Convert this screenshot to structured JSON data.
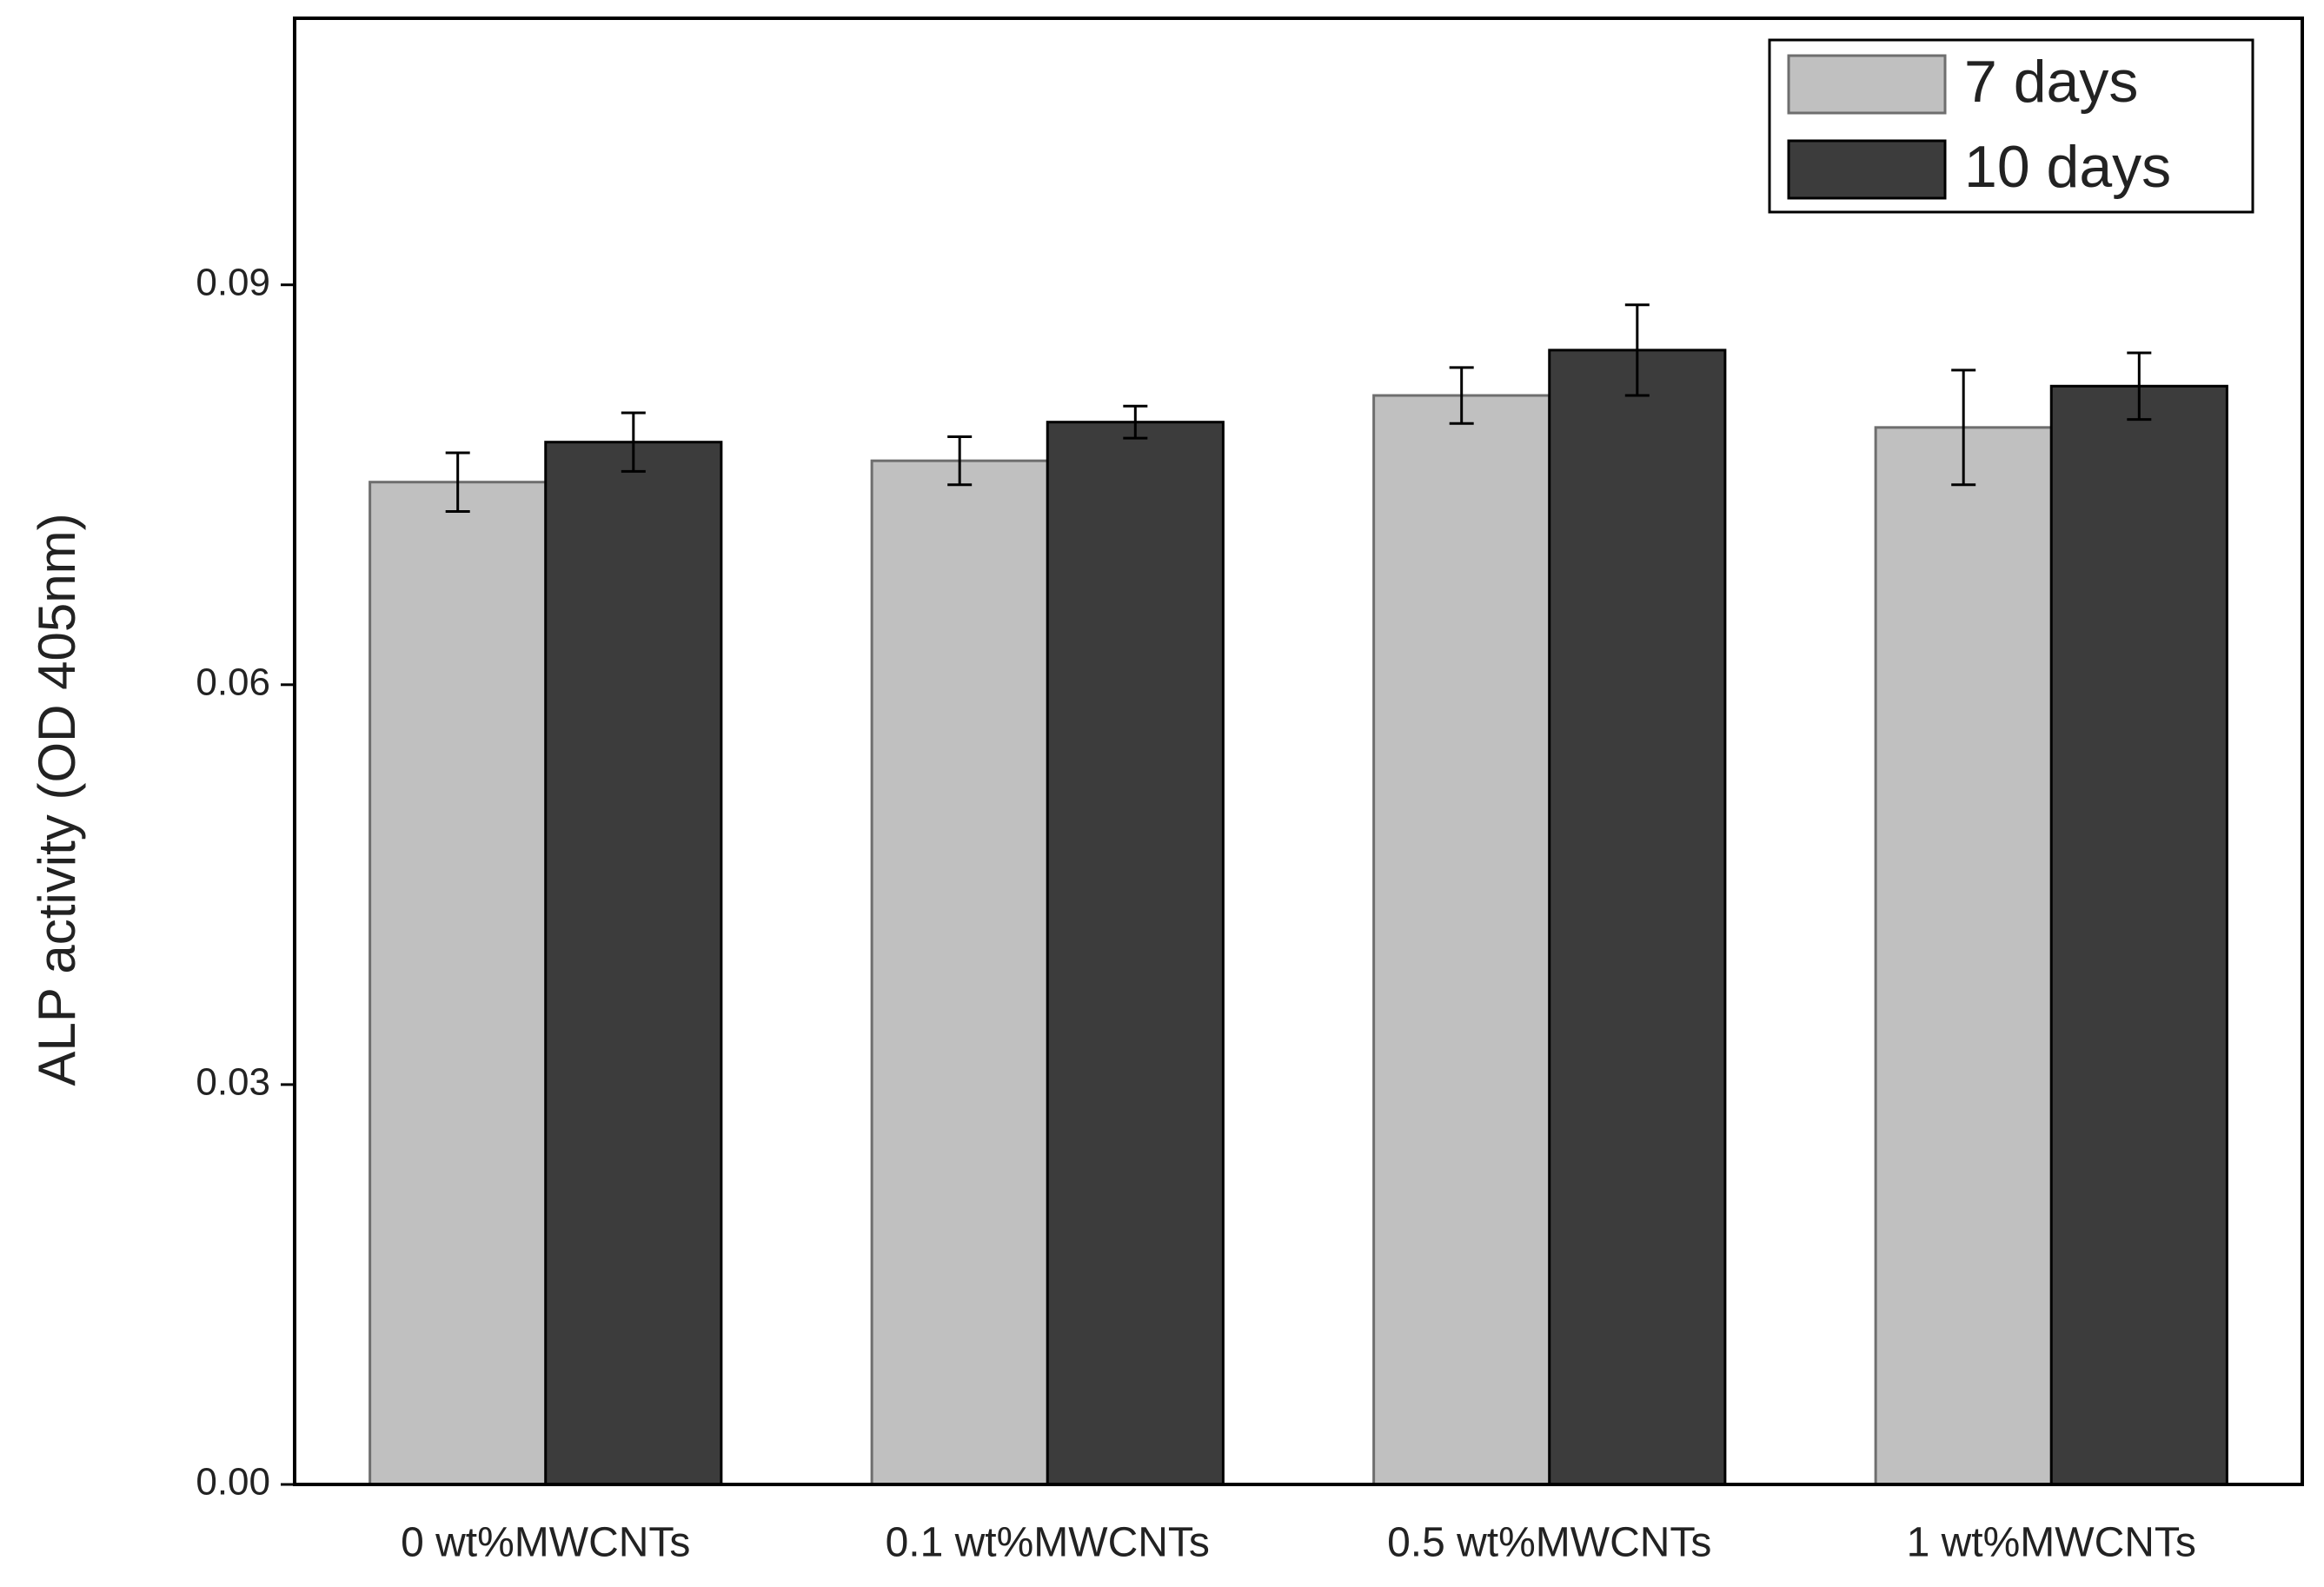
{
  "chart_data": {
    "type": "bar",
    "y_label": "ALP activity (OD 405nm)",
    "categories": [
      "0 wt%MWCNTs",
      "0.1 wt%MWCNTs",
      "0.5 wt%MWCNTs",
      "1 wt%MWCNTs"
    ],
    "series": [
      {
        "name": "7 days",
        "color": "#c0c0c0",
        "values": [
          0.0752,
          0.0768,
          0.0817,
          0.0793
        ],
        "errors": [
          0.0022,
          0.0018,
          0.0021,
          0.0043
        ]
      },
      {
        "name": "10 days",
        "color": "#3c3c3c",
        "values": [
          0.0782,
          0.0797,
          0.0851,
          0.0824
        ],
        "errors": [
          0.0022,
          0.0012,
          0.0034,
          0.0025
        ]
      }
    ],
    "ylim": [
      0,
      0.11
    ],
    "yticks": [
      {
        "value": 0,
        "label": "0.00"
      },
      {
        "value": 0.03,
        "label": "0.03"
      },
      {
        "value": 0.06,
        "label": "0.06"
      },
      {
        "value": 0.09,
        "label": "0.09"
      }
    ],
    "grid": false,
    "legend": "top-right"
  }
}
